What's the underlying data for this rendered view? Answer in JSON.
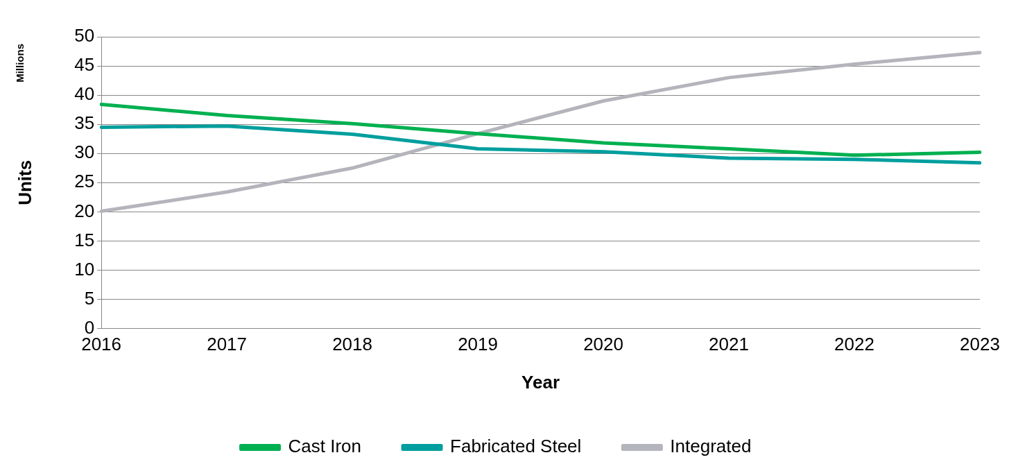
{
  "chart_data": {
    "type": "line",
    "xlabel": "Year",
    "ylabel": "Units",
    "annotations": [
      "Millions"
    ],
    "categories": [
      "2016",
      "2017",
      "2018",
      "2019",
      "2020",
      "2021",
      "2022",
      "2023"
    ],
    "series": [
      {
        "name": "Cast Iron",
        "color": "#00b050",
        "values": [
          38.4,
          36.5,
          35.1,
          33.4,
          31.8,
          30.8,
          29.7,
          30.2
        ]
      },
      {
        "name": "Fabricated Steel",
        "color": "#009e9e",
        "values": [
          34.5,
          34.7,
          33.3,
          30.8,
          30.3,
          29.2,
          29.0,
          28.4
        ]
      },
      {
        "name": "Integrated",
        "color": "#b4b4bc",
        "values": [
          20.1,
          23.4,
          27.5,
          33.4,
          39.0,
          43.0,
          45.3,
          47.3
        ]
      }
    ],
    "ylim": [
      0,
      50
    ],
    "yticks": [
      0,
      5,
      10,
      15,
      20,
      25,
      30,
      35,
      40,
      45,
      50
    ],
    "grid": "y",
    "legend": "bottom",
    "marker": "none",
    "line_style": "solid"
  }
}
